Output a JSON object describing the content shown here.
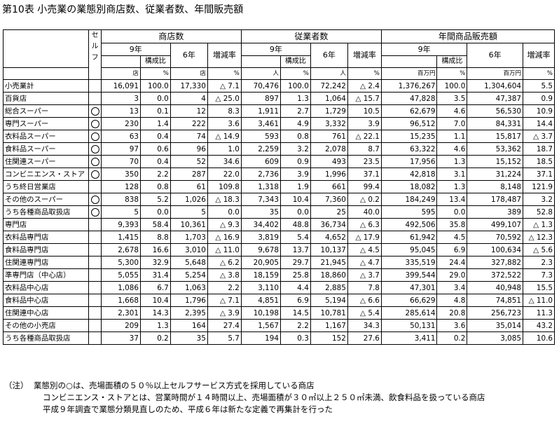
{
  "title": "第10表 小売業の業態別商店数、従業者数、年間販売額",
  "header": {
    "self_service": "セルフ",
    "groups": [
      "商店数",
      "従業者数",
      "年間商品販売額"
    ],
    "year9": "9年",
    "year6": "6年",
    "ratio": "構成比",
    "change": "増減率",
    "units": {
      "stores": "店",
      "pct": "%",
      "persons": "人",
      "million_yen": "百万円"
    }
  },
  "rows": [
    {
      "name": "小売業計",
      "self": false,
      "s9": "16,091",
      "s9r": "100.0",
      "s6": "17,330",
      "sch": "△ 7.1",
      "e9": "70,476",
      "e9r": "100.0",
      "e6": "72,242",
      "ech": "△ 2.4",
      "a9": "1,376,267",
      "a9r": "100.0",
      "a6": "1,304,604",
      "ach": "5.5"
    },
    {
      "name": "百貨店",
      "self": false,
      "s9": "3",
      "s9r": "0.0",
      "s6": "4",
      "sch": "△ 25.0",
      "e9": "897",
      "e9r": "1.3",
      "e6": "1,064",
      "ech": "△ 15.7",
      "a9": "47,828",
      "a9r": "3.5",
      "a6": "47,387",
      "ach": "0.9"
    },
    {
      "name": "総合スーパー",
      "self": true,
      "s9": "13",
      "s9r": "0.1",
      "s6": "12",
      "sch": "8.3",
      "e9": "1,911",
      "e9r": "2.7",
      "e6": "1,729",
      "ech": "10.5",
      "a9": "62,679",
      "a9r": "4.6",
      "a6": "56,530",
      "ach": "10.9"
    },
    {
      "name": "専門スーパー",
      "self": true,
      "s9": "230",
      "s9r": "1.4",
      "s6": "222",
      "sch": "3.6",
      "e9": "3,461",
      "e9r": "4.9",
      "e6": "3,332",
      "ech": "3.9",
      "a9": "96,512",
      "a9r": "7.0",
      "a6": "84,331",
      "ach": "14.4"
    },
    {
      "name": "衣料品スーパー",
      "self": true,
      "s9": "63",
      "s9r": "0.4",
      "s6": "74",
      "sch": "△ 14.9",
      "e9": "593",
      "e9r": "0.8",
      "e6": "761",
      "ech": "△ 22.1",
      "a9": "15,235",
      "a9r": "1.1",
      "a6": "15,817",
      "ach": "△ 3.7"
    },
    {
      "name": "食料品スーパー",
      "self": true,
      "s9": "97",
      "s9r": "0.6",
      "s6": "96",
      "sch": "1.0",
      "e9": "2,259",
      "e9r": "3.2",
      "e6": "2,078",
      "ech": "8.7",
      "a9": "63,322",
      "a9r": "4.6",
      "a6": "53,362",
      "ach": "18.7"
    },
    {
      "name": "住関連スーパー",
      "self": true,
      "s9": "70",
      "s9r": "0.4",
      "s6": "52",
      "sch": "34.6",
      "e9": "609",
      "e9r": "0.9",
      "e6": "493",
      "ech": "23.5",
      "a9": "17,956",
      "a9r": "1.3",
      "a6": "15,152",
      "ach": "18.5"
    },
    {
      "name": "コンビニエンス・ストア",
      "self": true,
      "s9": "350",
      "s9r": "2.2",
      "s6": "287",
      "sch": "22.0",
      "e9": "2,736",
      "e9r": "3.9",
      "e6": "1,996",
      "ech": "37.1",
      "a9": "42,818",
      "a9r": "3.1",
      "a6": "31,224",
      "ach": "37.1"
    },
    {
      "name": "うち終日営業店",
      "self": false,
      "s9": "128",
      "s9r": "0.8",
      "s6": "61",
      "sch": "109.8",
      "e9": "1,318",
      "e9r": "1.9",
      "e6": "661",
      "ech": "99.4",
      "a9": "18,082",
      "a9r": "1.3",
      "a6": "8,148",
      "ach": "121.9"
    },
    {
      "name": "その他のスーパー",
      "self": true,
      "s9": "838",
      "s9r": "5.2",
      "s6": "1,026",
      "sch": "△ 18.3",
      "e9": "7,343",
      "e9r": "10.4",
      "e6": "7,360",
      "ech": "△ 0.2",
      "a9": "184,249",
      "a9r": "13.4",
      "a6": "178,487",
      "ach": "3.2"
    },
    {
      "name": "うち各種商品取扱店",
      "self": true,
      "s9": "5",
      "s9r": "0.0",
      "s6": "5",
      "sch": "0.0",
      "e9": "35",
      "e9r": "0.0",
      "e6": "25",
      "ech": "40.0",
      "a9": "595",
      "a9r": "0.0",
      "a6": "389",
      "ach": "52.8"
    },
    {
      "name": "専門店",
      "self": false,
      "s9": "9,393",
      "s9r": "58.4",
      "s6": "10,361",
      "sch": "△ 9.3",
      "e9": "34,402",
      "e9r": "48.8",
      "e6": "36,734",
      "ech": "△ 6.3",
      "a9": "492,506",
      "a9r": "35.8",
      "a6": "499,107",
      "ach": "△ 1.3"
    },
    {
      "name": "衣料品専門店",
      "self": false,
      "s9": "1,415",
      "s9r": "8.8",
      "s6": "1,703",
      "sch": "△ 16.9",
      "e9": "3,819",
      "e9r": "5.4",
      "e6": "4,652",
      "ech": "△ 17.9",
      "a9": "61,942",
      "a9r": "4.5",
      "a6": "70,592",
      "ach": "△ 12.3"
    },
    {
      "name": "食料品専門店",
      "self": false,
      "s9": "2,678",
      "s9r": "16.6",
      "s6": "3,010",
      "sch": "△ 11.0",
      "e9": "9,678",
      "e9r": "13.7",
      "e6": "10,137",
      "ech": "△ 4.5",
      "a9": "95,045",
      "a9r": "6.9",
      "a6": "100,634",
      "ach": "△ 5.6"
    },
    {
      "name": "住関連専門店",
      "self": false,
      "s9": "5,300",
      "s9r": "32.9",
      "s6": "5,648",
      "sch": "△ 6.2",
      "e9": "20,905",
      "e9r": "29.7",
      "e6": "21,945",
      "ech": "△ 4.7",
      "a9": "335,519",
      "a9r": "24.4",
      "a6": "327,882",
      "ach": "2.3"
    },
    {
      "name": "準専門店（中心店）",
      "self": false,
      "s9": "5,055",
      "s9r": "31.4",
      "s6": "5,254",
      "sch": "△ 3.8",
      "e9": "18,159",
      "e9r": "25.8",
      "e6": "18,860",
      "ech": "△ 3.7",
      "a9": "399,544",
      "a9r": "29.0",
      "a6": "372,522",
      "ach": "7.3"
    },
    {
      "name": "衣料品中心店",
      "self": false,
      "s9": "1,086",
      "s9r": "6.7",
      "s6": "1,063",
      "sch": "2.2",
      "e9": "3,110",
      "e9r": "4.4",
      "e6": "2,885",
      "ech": "7.8",
      "a9": "47,301",
      "a9r": "3.4",
      "a6": "40,948",
      "ach": "15.5"
    },
    {
      "name": "食料品中心店",
      "self": false,
      "s9": "1,668",
      "s9r": "10.4",
      "s6": "1,796",
      "sch": "△ 7.1",
      "e9": "4,851",
      "e9r": "6.9",
      "e6": "5,194",
      "ech": "△ 6.6",
      "a9": "66,629",
      "a9r": "4.8",
      "a6": "74,851",
      "ach": "△ 11.0"
    },
    {
      "name": "住関連中心店",
      "self": false,
      "s9": "2,301",
      "s9r": "14.3",
      "s6": "2,395",
      "sch": "△ 3.9",
      "e9": "10,198",
      "e9r": "14.5",
      "e6": "10,781",
      "ech": "△ 5.4",
      "a9": "285,614",
      "a9r": "20.8",
      "a6": "256,723",
      "ach": "11.3"
    },
    {
      "name": "その他の小売店",
      "self": false,
      "s9": "209",
      "s9r": "1.3",
      "s6": "164",
      "sch": "27.4",
      "e9": "1,567",
      "e9r": "2.2",
      "e6": "1,167",
      "ech": "34.3",
      "a9": "50,131",
      "a9r": "3.6",
      "a6": "35,014",
      "ach": "43.2"
    },
    {
      "name": "うち各種商品取扱店",
      "self": false,
      "s9": "37",
      "s9r": "0.2",
      "s6": "35",
      "sch": "5.7",
      "e9": "194",
      "e9r": "0.3",
      "e6": "152",
      "ech": "27.6",
      "a9": "3,411",
      "a9r": "0.2",
      "a6": "3,085",
      "ach": "10.6"
    }
  ],
  "notes": {
    "label": "（注）",
    "lines": [
      "業態別の○は、売場面積の５０％以上セルフサービス方式を採用している商店",
      "コンビニエンス・ストアとは、営業時間が１４時間以上、売場面積が３０㎡以上２５０㎡未満、飲食料品を扱っている商店",
      "平成９年調査で業態分類見直しのため、平成６年は新たな定義で再集計を行った"
    ]
  }
}
